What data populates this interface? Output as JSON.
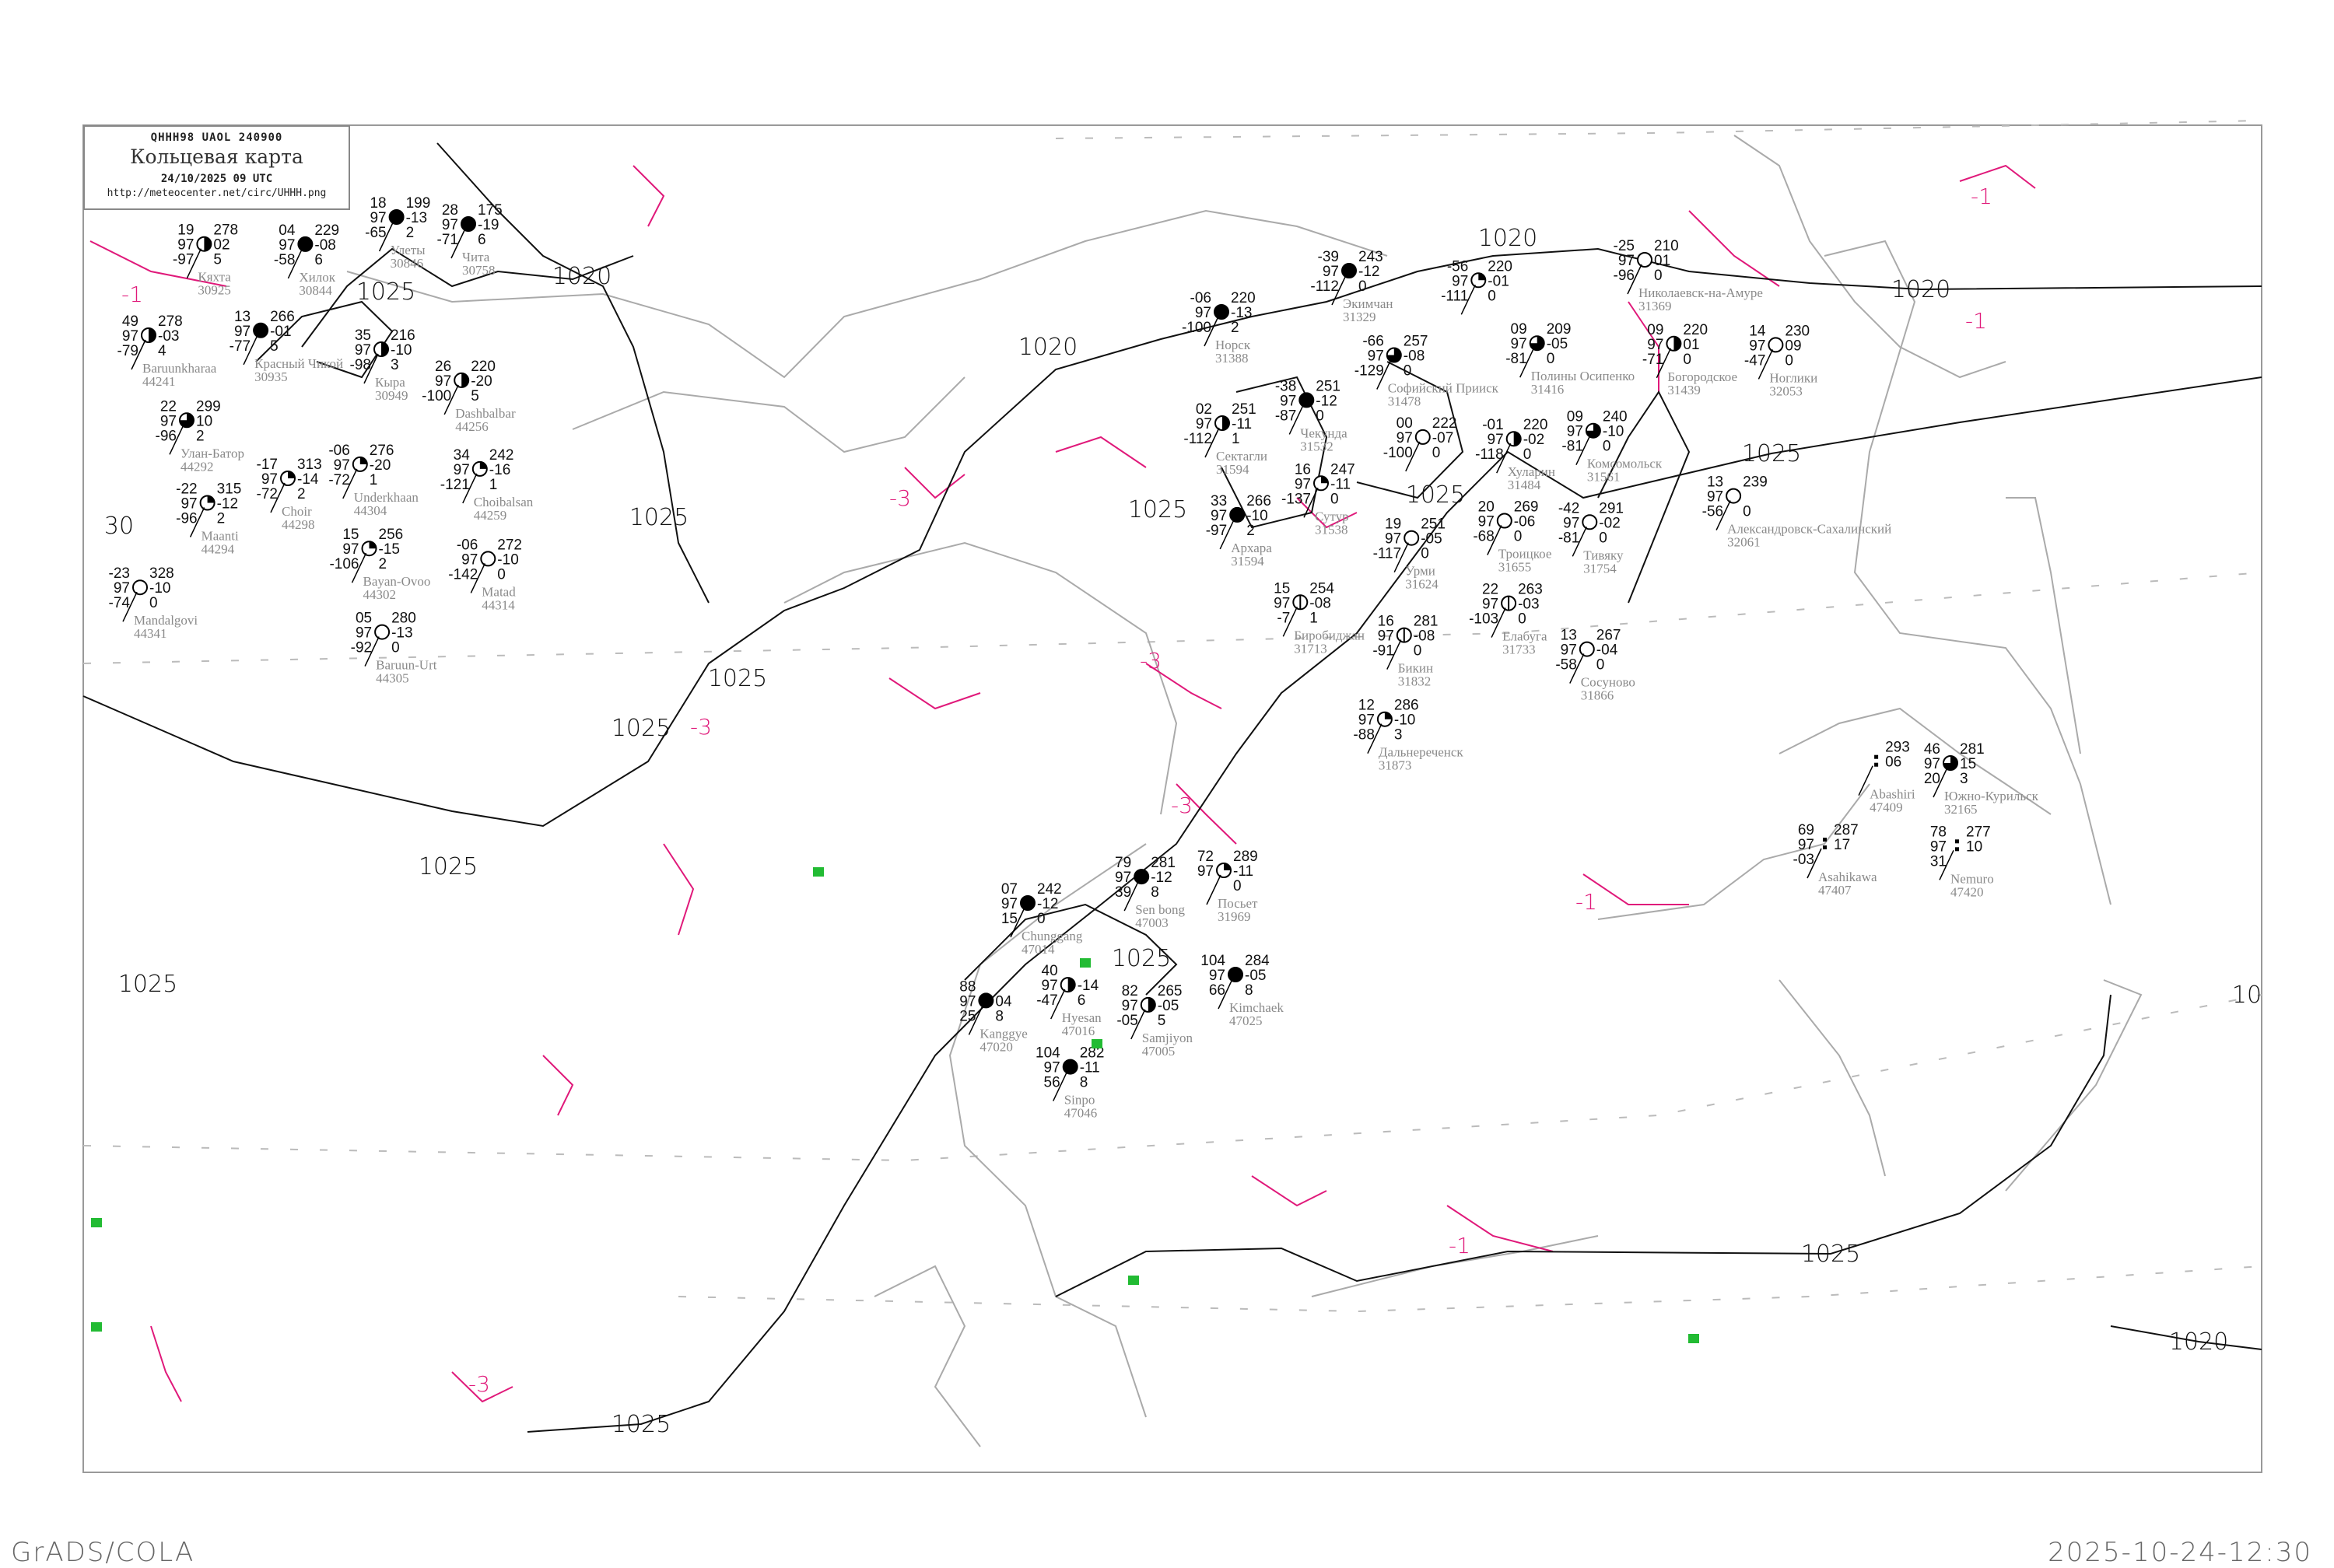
{
  "header": {
    "bulletin_code": "QHHH98  UAOL  240900",
    "title": "Кольцевая карта",
    "datetime": "24/10/2025 09 UTC",
    "url": "http://meteocenter.net/circ/UHHH.png"
  },
  "footer": {
    "software": "GrADS/COLA",
    "timestamp": "2025-10-24-12:30"
  },
  "colors": {
    "isobar": "#111111",
    "isallobar": "#e0197a",
    "coastline": "#aaaaaa",
    "station_name": "#8a8a8a",
    "precip_marker": "#22bb33",
    "frame": "#999999"
  },
  "isobar_labels": [
    "1025",
    "1020",
    "1025",
    "1025",
    "1025",
    "1025",
    "1025",
    "30",
    "1020",
    "1025",
    "1025",
    "1020",
    "1020",
    "1025",
    "1025",
    "1025",
    "1020",
    "1025",
    "10"
  ],
  "isallobar_labels": [
    "-1",
    "-1",
    "-3",
    "-3",
    "-3",
    "-1",
    "-1",
    "-3",
    "-3",
    "-1"
  ],
  "stations": [
    {
      "name": "Кяхта",
      "id": "30925",
      "cloud": "half",
      "tl": "19",
      "ml": "97",
      "bl": "-97",
      "tr": "278",
      "mr": "02",
      "br": "5"
    },
    {
      "name": "Красный Чикой",
      "id": "30935",
      "cloud": "full",
      "tl": "13",
      "ml": "97",
      "bl": "-77",
      "tr": "266",
      "mr": "-01",
      "br": "5"
    },
    {
      "name": "Хилок",
      "id": "30844",
      "cloud": "full",
      "tl": "04",
      "ml": "97",
      "bl": "-58",
      "tr": "229",
      "mr": "-08",
      "br": "6"
    },
    {
      "name": "Улеты",
      "id": "30846",
      "cloud": "full",
      "tl": "18",
      "ml": "97",
      "bl": "-65",
      "tr": "199",
      "mr": "-13",
      "br": "2"
    },
    {
      "name": "Чита",
      "id": "30758",
      "cloud": "full",
      "tl": "28",
      "ml": "97",
      "bl": "-71",
      "tr": "175",
      "mr": "-19",
      "br": "6"
    },
    {
      "name": "Baruunkharaa",
      "id": "44241",
      "cloud": "half",
      "tl": "49",
      "ml": "97",
      "bl": "-79",
      "tr": "278",
      "mr": "-03",
      "br": "4"
    },
    {
      "name": "Кыра",
      "id": "30949",
      "cloud": "half",
      "tl": "35",
      "ml": "97",
      "bl": "-98",
      "tr": "216",
      "mr": "-10",
      "br": "3"
    },
    {
      "name": "Dashbalbar",
      "id": "44256",
      "cloud": "half",
      "tl": "26",
      "ml": "97",
      "bl": "-100",
      "tr": "220",
      "mr": "-20",
      "br": "5"
    },
    {
      "name": "Улан-Батор",
      "id": "44292",
      "cloud": "three-quarter",
      "tl": "22",
      "ml": "97",
      "bl": "-96",
      "tr": "299",
      "mr": "10",
      "br": "2"
    },
    {
      "name": "Maanti",
      "id": "44294",
      "cloud": "quarter",
      "tl": "-22",
      "ml": "97",
      "bl": "-96",
      "tr": "315",
      "mr": "-12",
      "br": "2"
    },
    {
      "name": "Mandalgovi",
      "id": "44341",
      "cloud": "empty",
      "tl": "-23",
      "ml": "97",
      "bl": "-74",
      "tr": "328",
      "mr": "-10",
      "br": "0"
    },
    {
      "name": "Choir",
      "id": "44298",
      "cloud": "quarter",
      "tl": "-17",
      "ml": "97",
      "bl": "-72",
      "tr": "313",
      "mr": "-14",
      "br": "2"
    },
    {
      "name": "Underkhaan",
      "id": "44304",
      "cloud": "quarter",
      "tl": "-06",
      "ml": "97",
      "bl": "-72",
      "tr": "276",
      "mr": "-20",
      "br": "1"
    },
    {
      "name": "Bayan-Ovoo",
      "id": "44302",
      "cloud": "quarter",
      "tl": "15",
      "ml": "97",
      "bl": "-106",
      "tr": "256",
      "mr": "-15",
      "br": "2"
    },
    {
      "name": "Choibalsan",
      "id": "44259",
      "cloud": "quarter",
      "tl": "34",
      "ml": "97",
      "bl": "-121",
      "tr": "242",
      "mr": "-16",
      "br": "1"
    },
    {
      "name": "Baruun-Urt",
      "id": "44305",
      "cloud": "empty",
      "tl": "05",
      "ml": "97",
      "bl": "-92",
      "tr": "280",
      "mr": "-13",
      "br": "0"
    },
    {
      "name": "Matad",
      "id": "44314",
      "cloud": "empty",
      "tl": "-06",
      "ml": "97",
      "bl": "-142",
      "tr": "272",
      "mr": "-10",
      "br": "0"
    },
    {
      "name": "Норск",
      "id": "31388",
      "cloud": "full",
      "tl": "-06",
      "ml": "97",
      "bl": "-100",
      "tr": "220",
      "mr": "-13",
      "br": "2"
    },
    {
      "name": "Экимчан",
      "id": "31329",
      "cloud": "full",
      "tl": "-39",
      "ml": "97",
      "bl": "-112",
      "tr": "243",
      "mr": "-12",
      "br": "0"
    },
    {
      "name": "Софийский Прииск",
      "id": "31478",
      "cloud": "three-quarter",
      "tl": "-66",
      "ml": "97",
      "bl": "-129",
      "tr": "257",
      "mr": "-08",
      "br": "0"
    },
    {
      "name": "",
      "id": "",
      "cloud": "quarter",
      "tl": "-56",
      "ml": "97",
      "bl": "-111",
      "tr": "220",
      "mr": "-01",
      "br": "0"
    },
    {
      "name": "Полины Осипенко",
      "id": "31416",
      "cloud": "three-quarter",
      "tl": "09",
      "ml": "97",
      "bl": "-81",
      "tr": "209",
      "mr": "-05",
      "br": "0"
    },
    {
      "name": "Хуларин",
      "id": "31484",
      "cloud": "half",
      "tl": "-01",
      "ml": "97",
      "bl": "-118",
      "tr": "220",
      "mr": "-02",
      "br": "0"
    },
    {
      "name": "",
      "id": "",
      "cloud": "empty",
      "tl": "00",
      "ml": "97",
      "bl": "-100",
      "tr": "222",
      "mr": "-07",
      "br": "0"
    },
    {
      "name": "Комсомольск",
      "id": "31561",
      "cloud": "three-quarter",
      "tl": "09",
      "ml": "97",
      "bl": "-81",
      "tr": "240",
      "mr": "-10",
      "br": "0"
    },
    {
      "name": "Чекунда",
      "id": "31532",
      "cloud": "full",
      "tl": "-38",
      "ml": "97",
      "bl": "-87",
      "tr": "251",
      "mr": "-12",
      "br": "0"
    },
    {
      "name": "Сектагли",
      "id": "31594",
      "cloud": "half",
      "tl": "02",
      "ml": "97",
      "bl": "-112",
      "tr": "251",
      "mr": "-11",
      "br": "1"
    },
    {
      "name": "Сутур",
      "id": "31538",
      "cloud": "quarter",
      "tl": "16",
      "ml": "97",
      "bl": "-137",
      "tr": "247",
      "mr": "-11",
      "br": "0"
    },
    {
      "name": "Урми",
      "id": "31624",
      "cloud": "empty",
      "tl": "19",
      "ml": "97",
      "bl": "-117",
      "tr": "251",
      "mr": "-05",
      "br": "0"
    },
    {
      "name": "Троицкое",
      "id": "31655",
      "cloud": "empty",
      "tl": "20",
      "ml": "97",
      "bl": "-68",
      "tr": "269",
      "mr": "-06",
      "br": "0"
    },
    {
      "name": "Архара",
      "id": "31594",
      "cloud": "full",
      "tl": "33",
      "ml": "97",
      "bl": "-97",
      "tr": "266",
      "mr": "-10",
      "br": "2"
    },
    {
      "name": "Николаевск-на-Амуре",
      "id": "31369",
      "cloud": "empty",
      "tl": "-25",
      "ml": "97",
      "bl": "-96",
      "tr": "210",
      "mr": "01",
      "br": "0"
    },
    {
      "name": "Богородское",
      "id": "31439",
      "cloud": "half",
      "tl": "09",
      "ml": "97",
      "bl": "-71",
      "tr": "220",
      "mr": "01",
      "br": "0"
    },
    {
      "name": "Ноглики",
      "id": "32053",
      "cloud": "empty",
      "tl": "14",
      "ml": "97",
      "bl": "-47",
      "tr": "230",
      "mr": "09",
      "br": "0"
    },
    {
      "name": "Александровск-Сахалинский",
      "id": "32061",
      "cloud": "empty",
      "tl": "13",
      "ml": "97",
      "bl": "-56",
      "tr": "239",
      "mr": "",
      "br": "0"
    },
    {
      "name": "Биробиджан",
      "id": "31713",
      "cloud": "vertical",
      "tl": "15",
      "ml": "97",
      "bl": "-7",
      "tr": "254",
      "mr": "-08",
      "br": "1"
    },
    {
      "name": "Елабуга",
      "id": "31733",
      "cloud": "vertical",
      "tl": "22",
      "ml": "97",
      "bl": "-103",
      "tr": "263",
      "mr": "-03",
      "br": "0"
    },
    {
      "name": "Тивяку",
      "id": "31754",
      "cloud": "empty",
      "tl": "-42",
      "ml": "97",
      "bl": "-81",
      "tr": "291",
      "mr": "-02",
      "br": "0"
    },
    {
      "name": "Бикин",
      "id": "31832",
      "cloud": "vertical",
      "tl": "16",
      "ml": "97",
      "bl": "-91",
      "tr": "281",
      "mr": "-08",
      "br": "0"
    },
    {
      "name": "Сосуново",
      "id": "31866",
      "cloud": "empty",
      "tl": "13",
      "ml": "97",
      "bl": "-58",
      "tr": "267",
      "mr": "-04",
      "br": "0"
    },
    {
      "name": "Дальнереченск",
      "id": "31873",
      "cloud": "quarter",
      "tl": "12",
      "ml": "97",
      "bl": "-88",
      "tr": "286",
      "mr": "-10",
      "br": "3"
    },
    {
      "name": "Посьет",
      "id": "31969",
      "cloud": "quarter",
      "tl": "72",
      "ml": "97",
      "bl": "",
      "tr": "289",
      "mr": "-11",
      "br": "0"
    },
    {
      "name": "Sen bong",
      "id": "47003",
      "cloud": "full",
      "tl": "79",
      "ml": "97",
      "bl": "39",
      "tr": "281",
      "mr": "-12",
      "br": "8"
    },
    {
      "name": "Chunggang",
      "id": "47014",
      "cloud": "full",
      "tl": "07",
      "ml": "97",
      "bl": "15",
      "tr": "242",
      "mr": "-12",
      "br": "0"
    },
    {
      "name": "Hyesan",
      "id": "47016",
      "cloud": "half",
      "tl": "40",
      "ml": "97",
      "bl": "-47",
      "tr": "",
      "mr": "-14",
      "br": "6"
    },
    {
      "name": "Samjiyon",
      "id": "47005",
      "cloud": "half",
      "tl": "82",
      "ml": "97",
      "bl": "-05",
      "tr": "265",
      "mr": "-05",
      "br": "5"
    },
    {
      "name": "Kanggye",
      "id": "47020",
      "cloud": "full",
      "tl": "88",
      "ml": "97",
      "bl": "25",
      "tr": "",
      "mr": "04",
      "br": "8"
    },
    {
      "name": "Kimchaek",
      "id": "47025",
      "cloud": "full",
      "tl": "104",
      "ml": "97",
      "bl": "66",
      "tr": "284",
      "mr": "-05",
      "br": "8"
    },
    {
      "name": "Sinpo",
      "id": "47046",
      "cloud": "full",
      "tl": "104",
      "ml": "97",
      "bl": "56",
      "tr": "282",
      "mr": "-11",
      "br": "8"
    },
    {
      "name": "Южно-Курильск",
      "id": "32165",
      "cloud": "three-quarter",
      "tl": "46",
      "ml": "97",
      "bl": "20",
      "tr": "281",
      "mr": "15",
      "br": "3"
    },
    {
      "name": "Nemuro",
      "id": "47420",
      "cloud": "none",
      "tl": "78",
      "ml": "97",
      "bl": "31",
      "tr": "277",
      "mr": "10",
      "br": ""
    },
    {
      "name": "Asahikawa",
      "id": "47407",
      "cloud": "none",
      "tl": "69",
      "ml": "97",
      "bl": "-03",
      "tr": "287",
      "mr": "17",
      "br": ""
    },
    {
      "name": "Abashiri",
      "id": "47409",
      "cloud": "none",
      "tl": "",
      "ml": "",
      "bl": "",
      "tr": "293",
      "mr": "06",
      "br": ""
    }
  ]
}
